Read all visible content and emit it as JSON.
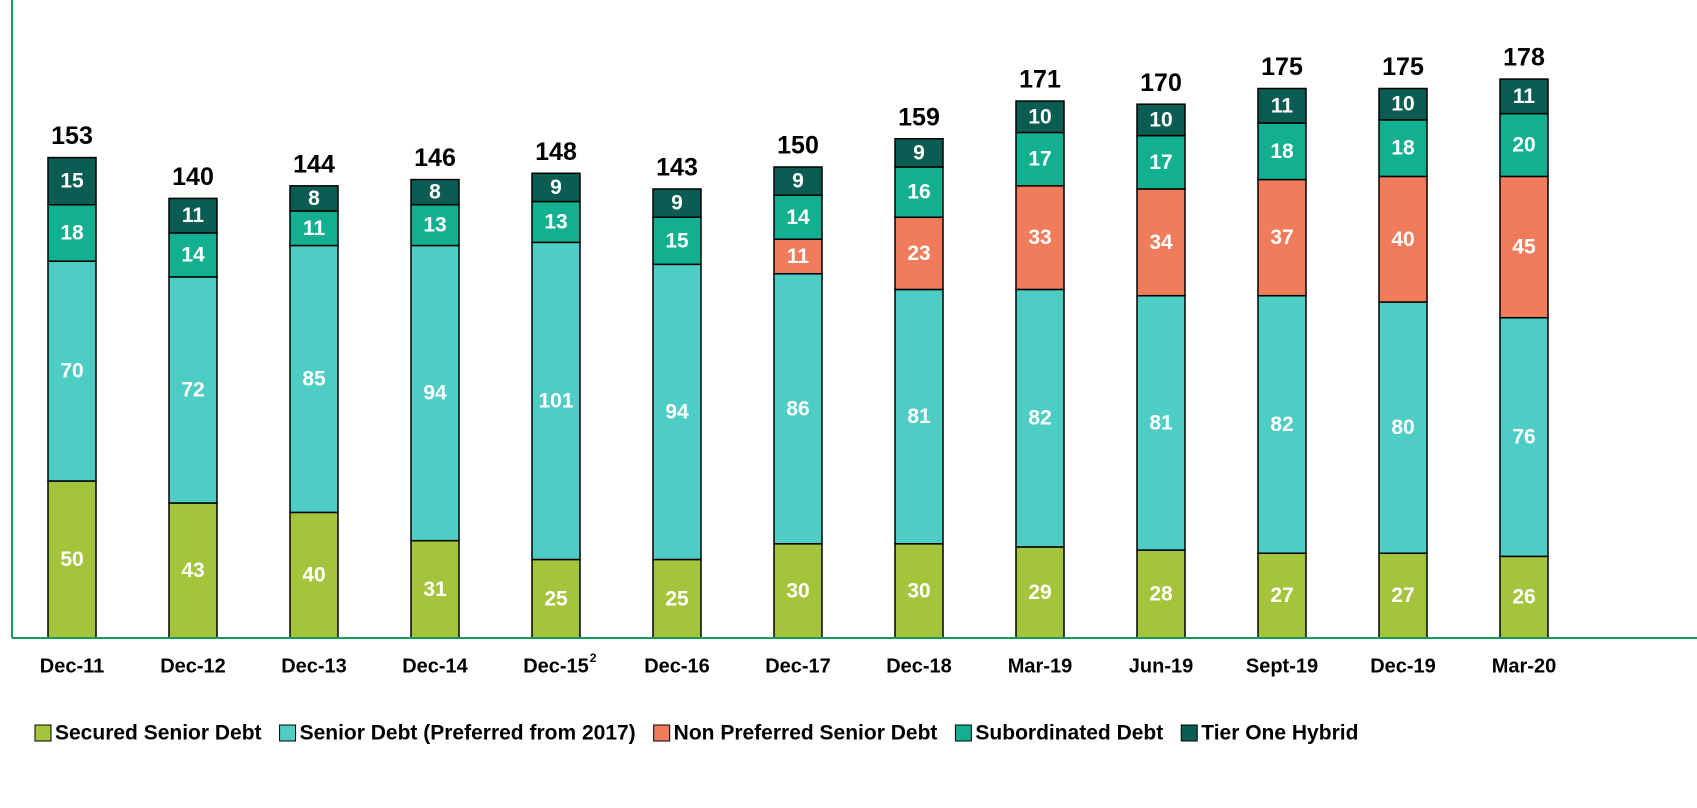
{
  "chart_data": {
    "type": "stacked_bar",
    "categories": [
      "Dec-11",
      "Dec-12",
      "Dec-13",
      "Dec-14",
      "Dec-15",
      "Dec-16",
      "Dec-17",
      "Dec-18",
      "Mar-19",
      "Jun-19",
      "Sept-19",
      "Dec-19",
      "Mar-20"
    ],
    "category_notes": [
      null,
      null,
      null,
      null,
      "2",
      null,
      null,
      null,
      null,
      null,
      null,
      null,
      null
    ],
    "series": [
      {
        "name": "Secured Senior Debt",
        "color": "#a4c43c",
        "values": [
          50,
          43,
          40,
          31,
          25,
          25,
          30,
          30,
          29,
          28,
          27,
          27,
          26
        ]
      },
      {
        "name": "Senior Debt (Preferred from 2017)",
        "color": "#4ecdc4",
        "values": [
          70,
          72,
          85,
          94,
          101,
          94,
          86,
          81,
          82,
          81,
          82,
          80,
          76
        ]
      },
      {
        "name": "Non Preferred Senior Debt",
        "color": "#f07c5c",
        "values": [
          null,
          null,
          null,
          null,
          null,
          null,
          11,
          23,
          33,
          34,
          37,
          40,
          45
        ]
      },
      {
        "name": "Subordinated Debt",
        "color": "#12b090",
        "values": [
          18,
          14,
          11,
          13,
          13,
          15,
          14,
          16,
          17,
          17,
          18,
          18,
          20
        ]
      },
      {
        "name": "Tier One Hybrid",
        "color": "#0b5c52",
        "values": [
          15,
          11,
          8,
          8,
          9,
          9,
          9,
          9,
          10,
          10,
          11,
          10,
          11
        ]
      }
    ],
    "totals": [
      153,
      140,
      144,
      146,
      148,
      143,
      150,
      159,
      171,
      170,
      175,
      175,
      178
    ],
    "ylim": [
      0,
      200
    ],
    "axis_color": "#1a9a5a"
  }
}
